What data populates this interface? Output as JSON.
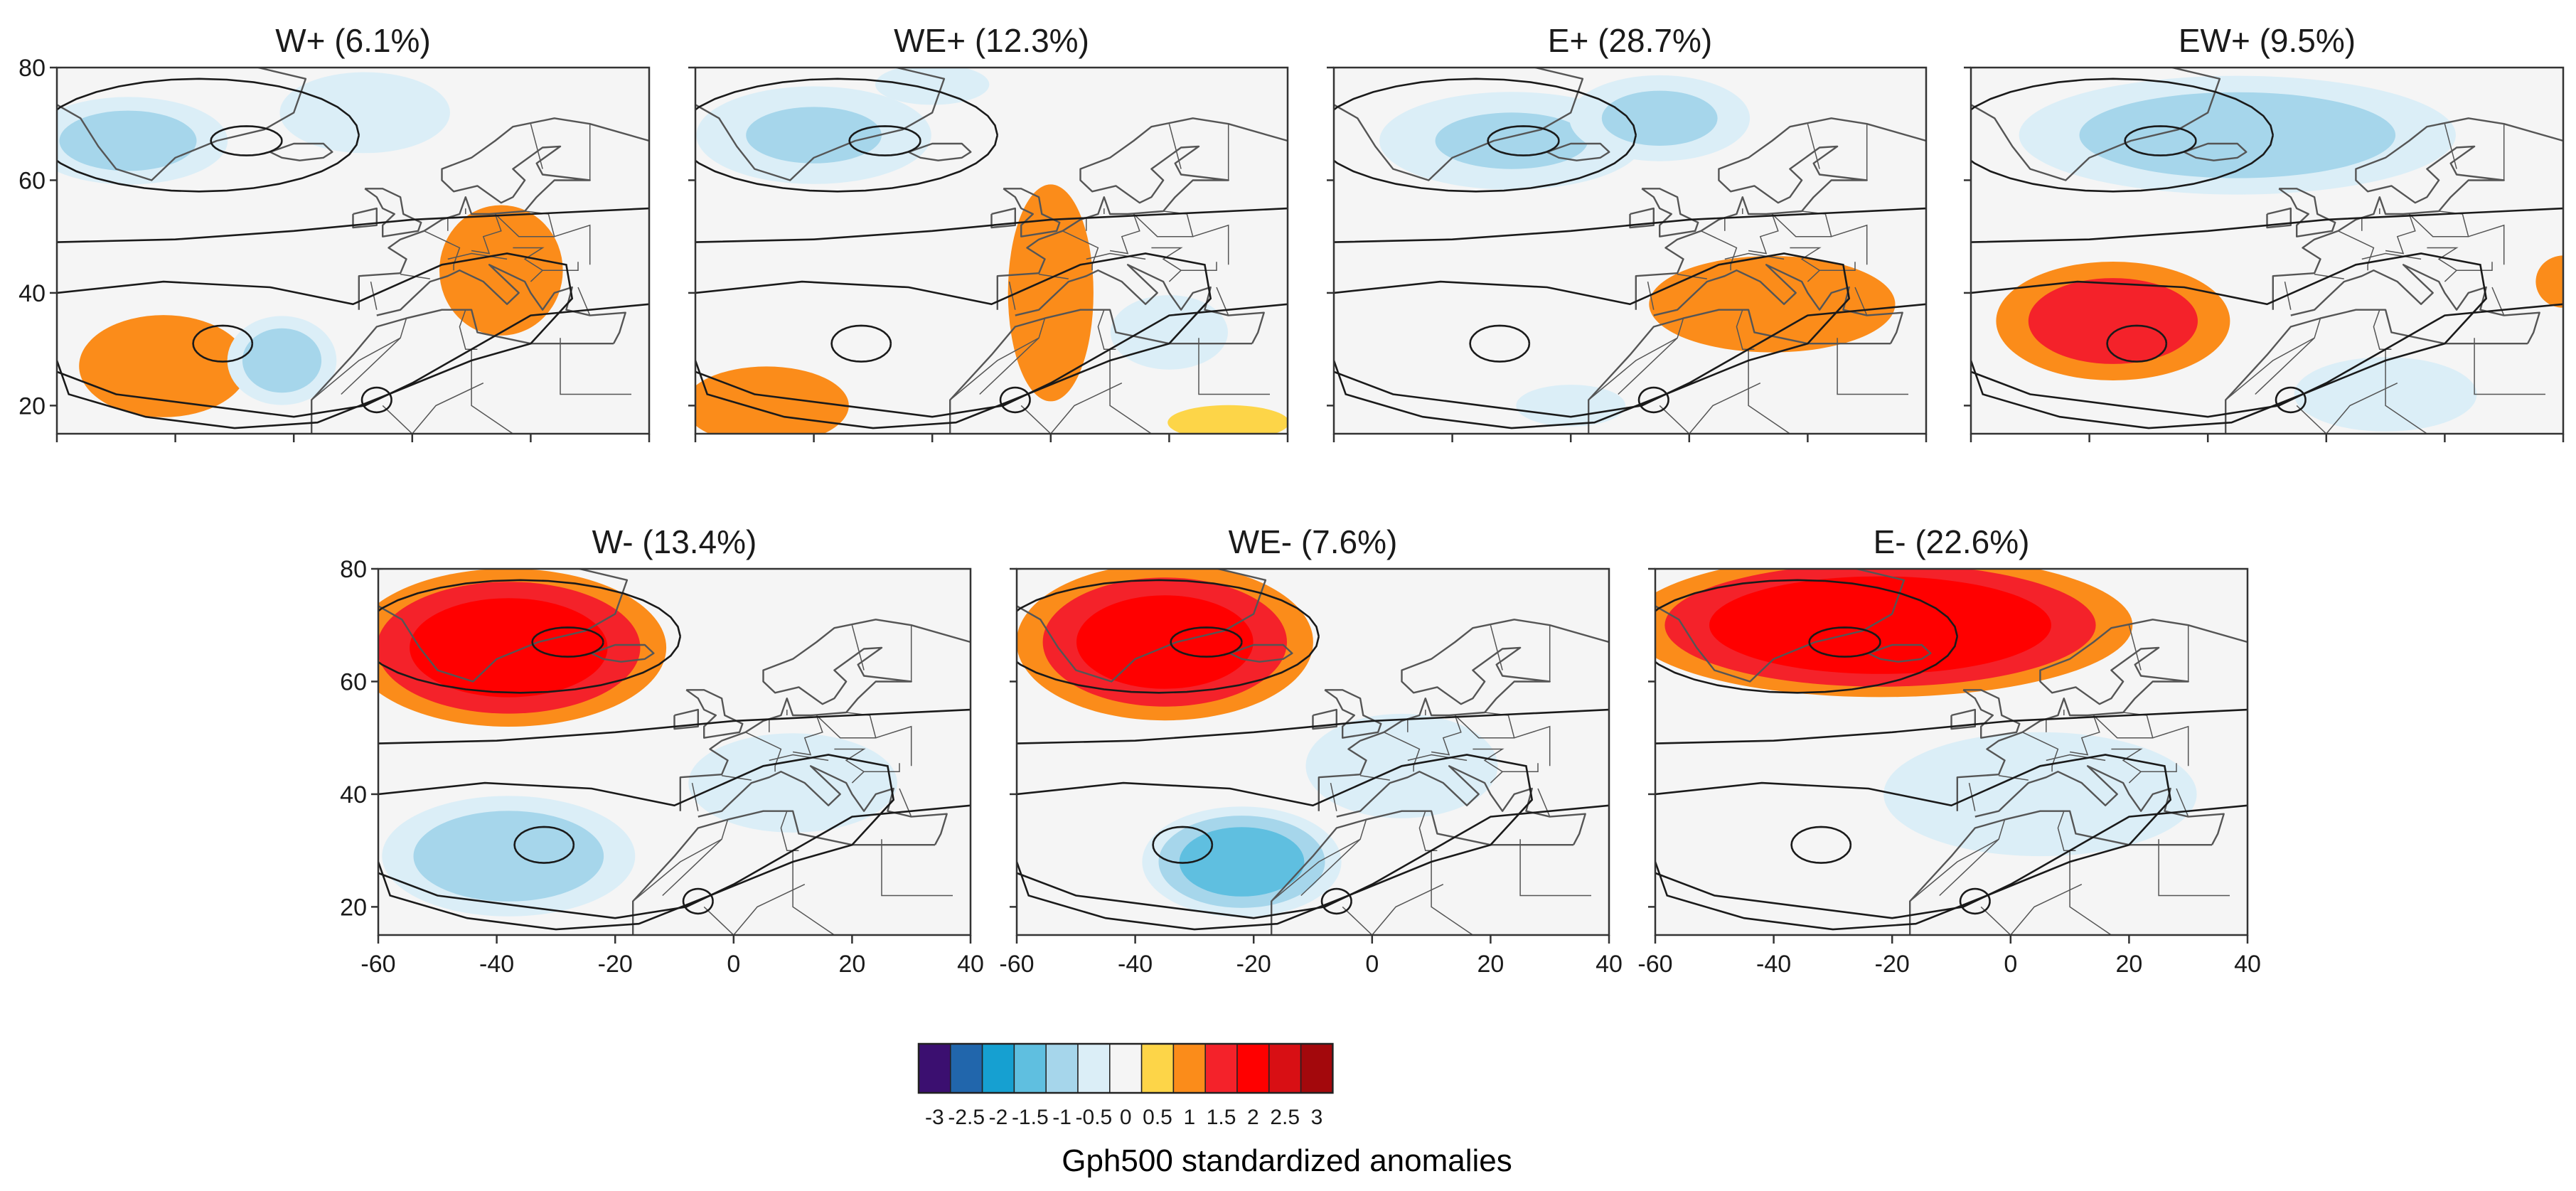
{
  "chart_data": {
    "type": "heatmap",
    "description_variable": "Gph500 standardized anomalies",
    "x_axis": {
      "range": [
        -60,
        40
      ],
      "ticks": [
        -60,
        -40,
        -20,
        0,
        20,
        40
      ],
      "tick_labels": [
        "-60",
        "-40",
        "-20",
        "0",
        "20",
        "40"
      ]
    },
    "y_axis": {
      "range": [
        15,
        80
      ],
      "ticks": [
        20,
        40,
        60,
        80
      ],
      "tick_labels": [
        "20",
        "40",
        "60",
        "80"
      ]
    },
    "panels": [
      {
        "id": "w-plus",
        "title": "W+ (6.1%)",
        "anomalies": [
          {
            "lon": -42,
            "lat": 27,
            "value": 1.2,
            "sx": 11,
            "sy": 7
          },
          {
            "lon": 15,
            "lat": 44,
            "value": 0.8,
            "sx": 9,
            "sy": 10
          },
          {
            "lon": -48,
            "lat": 67,
            "value": -1.2,
            "sx": 13,
            "sy": 6
          },
          {
            "lon": -22,
            "lat": 28,
            "value": -1.3,
            "sx": 7,
            "sy": 6
          },
          {
            "lon": -8,
            "lat": 72,
            "value": -0.6,
            "sx": 14,
            "sy": 7
          }
        ]
      },
      {
        "id": "we-plus",
        "title": "WE+ (12.3%)",
        "anomalies": [
          {
            "lon": 0,
            "lat": 40,
            "value": 0.9,
            "sx": 6,
            "sy": 16
          },
          {
            "lon": -48,
            "lat": 20,
            "value": 0.8,
            "sx": 12,
            "sy": 6
          },
          {
            "lon": 30,
            "lat": 17,
            "value": 0.6,
            "sx": 10,
            "sy": 3
          },
          {
            "lon": -40,
            "lat": 68,
            "value": -1.0,
            "sx": 16,
            "sy": 7
          },
          {
            "lon": -20,
            "lat": 77,
            "value": -0.9,
            "sx": 8,
            "sy": 3
          },
          {
            "lon": 20,
            "lat": 33,
            "value": -0.7,
            "sx": 9,
            "sy": 6
          }
        ]
      },
      {
        "id": "e-plus",
        "title": "E+ (28.7%)",
        "anomalies": [
          {
            "lon": 14,
            "lat": 38,
            "value": 0.95,
            "sx": 17,
            "sy": 7
          },
          {
            "lon": -30,
            "lat": 67,
            "value": -1.0,
            "sx": 18,
            "sy": 7
          },
          {
            "lon": -5,
            "lat": 71,
            "value": -1.1,
            "sx": 12,
            "sy": 6
          },
          {
            "lon": -20,
            "lat": 20,
            "value": -0.5,
            "sx": 10,
            "sy": 4
          }
        ]
      },
      {
        "id": "ew-plus",
        "title": "EW+ (9.5%)",
        "anomalies": [
          {
            "lon": -36,
            "lat": 35,
            "value": 1.3,
            "sx": 15,
            "sy": 8
          },
          {
            "lon": 40,
            "lat": 42,
            "value": 0.8,
            "sx": 4,
            "sy": 4
          },
          {
            "lon": -15,
            "lat": 68,
            "value": -1.3,
            "sx": 28,
            "sy": 8
          },
          {
            "lon": 10,
            "lat": 22,
            "value": -0.7,
            "sx": 14,
            "sy": 6
          }
        ]
      },
      {
        "id": "w-minus",
        "title": "W- (13.4%)",
        "anomalies": [
          {
            "lon": -38,
            "lat": 66,
            "value": 1.9,
            "sx": 19,
            "sy": 10
          },
          {
            "lon": -38,
            "lat": 29,
            "value": -1.4,
            "sx": 16,
            "sy": 8
          },
          {
            "lon": 10,
            "lat": 42,
            "value": -0.7,
            "sx": 16,
            "sy": 8
          },
          {
            "lon": 25,
            "lat": 58,
            "value": -0.4,
            "sx": 12,
            "sy": 6
          }
        ]
      },
      {
        "id": "we-minus",
        "title": "WE- (7.6%)",
        "anomalies": [
          {
            "lon": -35,
            "lat": 67,
            "value": 1.8,
            "sx": 18,
            "sy": 10
          },
          {
            "lon": -22,
            "lat": 28,
            "value": -1.9,
            "sx": 12,
            "sy": 7
          },
          {
            "lon": 5,
            "lat": 45,
            "value": -0.8,
            "sx": 14,
            "sy": 8
          },
          {
            "lon": 28,
            "lat": 60,
            "value": -0.4,
            "sx": 12,
            "sy": 6
          }
        ]
      },
      {
        "id": "e-minus",
        "title": "E- (22.6%)",
        "anomalies": [
          {
            "lon": -22,
            "lat": 70,
            "value": 2.1,
            "sx": 30,
            "sy": 9
          },
          {
            "lon": 5,
            "lat": 40,
            "value": -0.7,
            "sx": 24,
            "sy": 10
          },
          {
            "lon": -30,
            "lat": 28,
            "value": -0.4,
            "sx": 15,
            "sy": 7
          }
        ]
      }
    ],
    "colorbar": {
      "title": "Gph500 standardized anomalies",
      "tick_labels": [
        "-3",
        "-2.5",
        "-2",
        "-1.5",
        "-1",
        "-0.5",
        "0",
        "0.5",
        "1",
        "1.5",
        "2",
        "2.5",
        "3"
      ],
      "colors": [
        "#3b0f70",
        "#2166ac",
        "#16a0d1",
        "#5fbfe0",
        "#a6d6eb",
        "#dbeef7",
        "#f5f5f5",
        "#fdd548",
        "#fb8c1a",
        "#f4222a",
        "#ff0000",
        "#d80f14",
        "#a3080c"
      ]
    }
  }
}
